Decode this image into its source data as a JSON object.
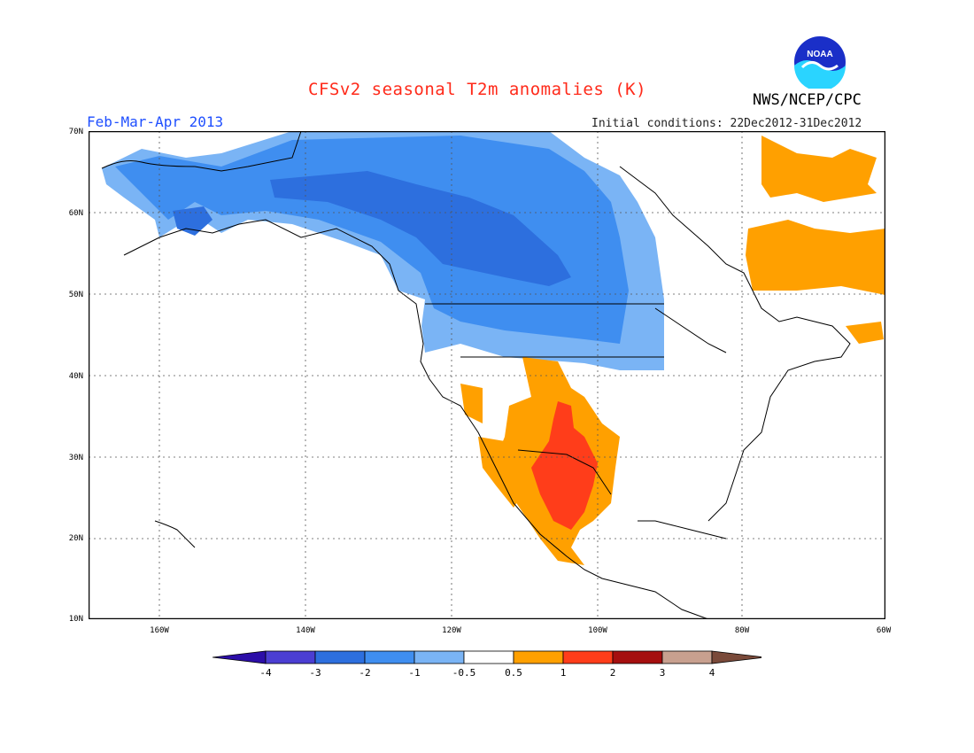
{
  "header": {
    "title": "CFSv2 seasonal T2m anomalies (K)",
    "period": "Feb-Mar-Apr 2013",
    "initial_conditions": "Initial conditions: 22Dec2012-31Dec2012",
    "agency": "NWS/NCEP/CPC",
    "logo_text": "NOAA"
  },
  "map": {
    "region": "North America",
    "lat_labels": [
      "70N",
      "60N",
      "50N",
      "40N",
      "30N",
      "20N",
      "10N"
    ],
    "lon_labels": [
      "160W",
      "140W",
      "120W",
      "100W",
      "80W",
      "60W"
    ],
    "gridlines": true
  },
  "colorbar": {
    "labels": [
      "-4",
      "-3",
      "-2",
      "-1",
      "-0.5",
      "0.5",
      "1",
      "2",
      "3",
      "4"
    ],
    "colors": [
      "#2c0ea8",
      "#4b3ed2",
      "#2d6fde",
      "#3f8ef0",
      "#7ab4f5",
      "#ffffff",
      "#ffa000",
      "#ff3d1a",
      "#a50f0f",
      "#c8a08f",
      "#7a4a3a"
    ]
  }
}
